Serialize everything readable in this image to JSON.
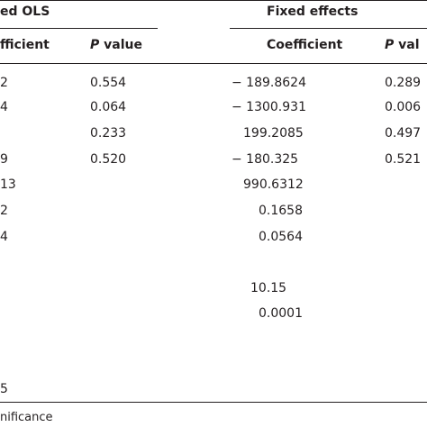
{
  "header": {
    "pooled_ols_partial": "ed OLS",
    "fixed_effects": "Fixed effects"
  },
  "subheader": {
    "pooled_coef_partial": "fficient",
    "pooled_p_letter": "P",
    "pooled_p_rest": " value",
    "fe_coef": "Coefficient",
    "fe_p_letter": "P",
    "fe_p_rest": " val"
  },
  "rows": [
    {
      "ols_coef_tail": "2",
      "ols_p": "0.554",
      "fe_coef": "− 189.8624",
      "fe_p": "0.289"
    },
    {
      "ols_coef_tail": "4",
      "ols_p": "0.064",
      "fe_coef": "− 1300.931",
      "fe_p": "0.006"
    },
    {
      "ols_coef_tail": "",
      "ols_p": "0.233",
      "fe_coef": "199.2085",
      "fe_p": "0.497"
    },
    {
      "ols_coef_tail": "9",
      "ols_p": "0.520",
      "fe_coef": "− 180.325",
      "fe_p": "0.521"
    },
    {
      "ols_coef_tail": "13",
      "ols_p": "",
      "fe_coef": "990.6312",
      "fe_p": ""
    },
    {
      "ols_coef_tail": "2",
      "ols_p": "",
      "fe_coef": "0.1658",
      "fe_p": ""
    },
    {
      "ols_coef_tail": "4",
      "ols_p": "",
      "fe_coef": "0.0564",
      "fe_p": ""
    }
  ],
  "stats": {
    "fe_stat_1": "10.15",
    "fe_stat_2": "0.0001",
    "ols_bottom_tail": "5"
  },
  "footnote": "nificance"
}
